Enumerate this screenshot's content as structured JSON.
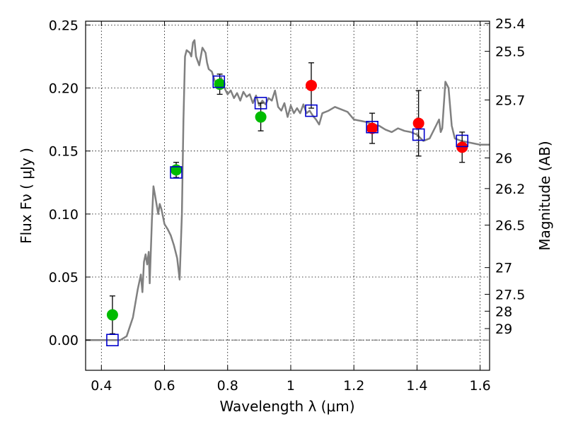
{
  "chart_data": {
    "type": "scatter",
    "xlabel": "Wavelength  λ (μm)",
    "ylabel": "Flux  Fν  ( μJy )",
    "y2label": "Magnitude (AB)",
    "xlim": [
      0.35,
      1.63
    ],
    "ylim": [
      -0.024,
      0.253
    ],
    "grid": true,
    "x_ticks": [
      {
        "value": 0.4,
        "label": "0.4"
      },
      {
        "value": 0.6,
        "label": "0.6"
      },
      {
        "value": 0.8,
        "label": "0.8"
      },
      {
        "value": 1.0,
        "label": "1"
      },
      {
        "value": 1.2,
        "label": "1.2"
      },
      {
        "value": 1.4,
        "label": "1.4"
      },
      {
        "value": 1.6,
        "label": "1.6"
      }
    ],
    "y_ticks": [
      {
        "value": 0.0,
        "label": "0.00"
      },
      {
        "value": 0.05,
        "label": "0.05"
      },
      {
        "value": 0.1,
        "label": "0.10"
      },
      {
        "value": 0.15,
        "label": "0.15"
      },
      {
        "value": 0.2,
        "label": "0.20"
      },
      {
        "value": 0.25,
        "label": "0.25"
      }
    ],
    "y2_ticks": [
      {
        "flux": 0.2512,
        "label": "25.4"
      },
      {
        "flux": 0.2291,
        "label": "25.5"
      },
      {
        "flux": 0.1905,
        "label": "25.7"
      },
      {
        "flux": 0.1445,
        "label": "26"
      },
      {
        "flux": 0.1202,
        "label": "26.2"
      },
      {
        "flux": 0.0912,
        "label": "26.5"
      },
      {
        "flux": 0.0575,
        "label": "27"
      },
      {
        "flux": 0.0363,
        "label": "27.5"
      },
      {
        "flux": 0.0229,
        "label": "28"
      },
      {
        "flux": 0.0091,
        "label": "29"
      }
    ],
    "colors": {
      "model": "#808080",
      "space_based": "#00bb00",
      "ground_based": "#ff0000",
      "model_photometry": "#0000cc",
      "error_bars": "#000000",
      "zero_line": "#444444"
    },
    "series": [
      {
        "kind": "line",
        "points": [
          [
            0.35,
            0.0
          ],
          [
            0.46,
            0.0
          ],
          [
            0.48,
            0.003
          ],
          [
            0.5,
            0.018
          ],
          [
            0.515,
            0.04
          ],
          [
            0.525,
            0.052
          ],
          [
            0.53,
            0.038
          ],
          [
            0.535,
            0.062
          ],
          [
            0.54,
            0.068
          ],
          [
            0.545,
            0.06
          ],
          [
            0.55,
            0.07
          ],
          [
            0.553,
            0.045
          ],
          [
            0.56,
            0.095
          ],
          [
            0.565,
            0.122
          ],
          [
            0.57,
            0.115
          ],
          [
            0.58,
            0.1
          ],
          [
            0.585,
            0.108
          ],
          [
            0.59,
            0.104
          ],
          [
            0.6,
            0.092
          ],
          [
            0.61,
            0.088
          ],
          [
            0.62,
            0.083
          ],
          [
            0.63,
            0.075
          ],
          [
            0.64,
            0.065
          ],
          [
            0.648,
            0.048
          ],
          [
            0.655,
            0.1
          ],
          [
            0.66,
            0.175
          ],
          [
            0.665,
            0.225
          ],
          [
            0.67,
            0.23
          ],
          [
            0.68,
            0.228
          ],
          [
            0.685,
            0.225
          ],
          [
            0.69,
            0.236
          ],
          [
            0.695,
            0.238
          ],
          [
            0.7,
            0.225
          ],
          [
            0.71,
            0.218
          ],
          [
            0.72,
            0.232
          ],
          [
            0.73,
            0.228
          ],
          [
            0.735,
            0.22
          ],
          [
            0.74,
            0.215
          ],
          [
            0.75,
            0.213
          ],
          [
            0.76,
            0.205
          ],
          [
            0.77,
            0.203
          ],
          [
            0.78,
            0.208
          ],
          [
            0.79,
            0.2
          ],
          [
            0.8,
            0.195
          ],
          [
            0.81,
            0.198
          ],
          [
            0.82,
            0.192
          ],
          [
            0.83,
            0.196
          ],
          [
            0.84,
            0.19
          ],
          [
            0.85,
            0.197
          ],
          [
            0.86,
            0.193
          ],
          [
            0.87,
            0.195
          ],
          [
            0.88,
            0.188
          ],
          [
            0.89,
            0.194
          ],
          [
            0.9,
            0.186
          ],
          [
            0.91,
            0.19
          ],
          [
            0.92,
            0.187
          ],
          [
            0.93,
            0.192
          ],
          [
            0.94,
            0.19
          ],
          [
            0.95,
            0.198
          ],
          [
            0.96,
            0.185
          ],
          [
            0.97,
            0.182
          ],
          [
            0.98,
            0.188
          ],
          [
            0.99,
            0.177
          ],
          [
            1.0,
            0.186
          ],
          [
            1.01,
            0.18
          ],
          [
            1.02,
            0.184
          ],
          [
            1.03,
            0.18
          ],
          [
            1.04,
            0.187
          ],
          [
            1.05,
            0.18
          ],
          [
            1.06,
            0.182
          ],
          [
            1.07,
            0.178
          ],
          [
            1.08,
            0.175
          ],
          [
            1.09,
            0.171
          ],
          [
            1.1,
            0.18
          ],
          [
            1.12,
            0.182
          ],
          [
            1.14,
            0.185
          ],
          [
            1.16,
            0.183
          ],
          [
            1.18,
            0.181
          ],
          [
            1.2,
            0.175
          ],
          [
            1.22,
            0.174
          ],
          [
            1.24,
            0.173
          ],
          [
            1.26,
            0.171
          ],
          [
            1.28,
            0.17
          ],
          [
            1.3,
            0.167
          ],
          [
            1.32,
            0.165
          ],
          [
            1.34,
            0.168
          ],
          [
            1.36,
            0.166
          ],
          [
            1.38,
            0.165
          ],
          [
            1.4,
            0.163
          ],
          [
            1.42,
            0.158
          ],
          [
            1.44,
            0.16
          ],
          [
            1.46,
            0.17
          ],
          [
            1.47,
            0.175
          ],
          [
            1.475,
            0.165
          ],
          [
            1.48,
            0.168
          ],
          [
            1.49,
            0.205
          ],
          [
            1.5,
            0.2
          ],
          [
            1.51,
            0.17
          ],
          [
            1.52,
            0.16
          ],
          [
            1.54,
            0.158
          ],
          [
            1.56,
            0.157
          ],
          [
            1.58,
            0.156
          ],
          [
            1.6,
            0.155
          ],
          [
            1.63,
            0.155
          ]
        ]
      },
      {
        "kind": "points-green",
        "points": [
          {
            "x": 0.435,
            "y": 0.02,
            "err": 0.015
          },
          {
            "x": 0.637,
            "y": 0.135,
            "err": 0.006
          },
          {
            "x": 0.775,
            "y": 0.203,
            "err": 0.008
          },
          {
            "x": 0.905,
            "y": 0.177,
            "err": 0.011
          }
        ]
      },
      {
        "kind": "points-red",
        "points": [
          {
            "x": 1.065,
            "y": 0.202,
            "err": 0.018
          },
          {
            "x": 1.258,
            "y": 0.168,
            "err": 0.012
          },
          {
            "x": 1.405,
            "y": 0.172,
            "err": 0.026
          },
          {
            "x": 1.543,
            "y": 0.153,
            "err": 0.012
          }
        ]
      },
      {
        "kind": "squares-blue",
        "points": [
          {
            "x": 0.435,
            "y": 0.0
          },
          {
            "x": 0.637,
            "y": 0.133
          },
          {
            "x": 0.772,
            "y": 0.205
          },
          {
            "x": 0.905,
            "y": 0.188
          },
          {
            "x": 1.065,
            "y": 0.182
          },
          {
            "x": 1.258,
            "y": 0.169
          },
          {
            "x": 1.405,
            "y": 0.163
          },
          {
            "x": 1.543,
            "y": 0.158
          }
        ]
      }
    ]
  }
}
